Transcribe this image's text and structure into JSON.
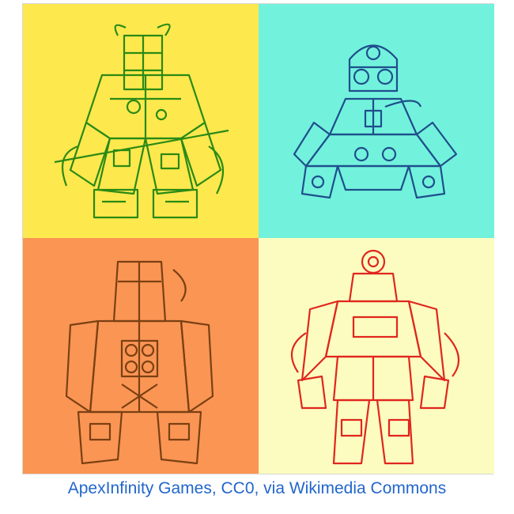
{
  "caption": {
    "text": "ApexInfinity Games, CC0, via Wikimedia Commons",
    "color": "#2266cc"
  },
  "panels": [
    {
      "background": "#fde84e",
      "line": "#2a8a14",
      "figure": "robot-figure-green"
    },
    {
      "background": "#72f2dc",
      "line": "#1f4e8c",
      "figure": "robot-figure-blue"
    },
    {
      "background": "#fa9554",
      "line": "#7a4012",
      "figure": "robot-figure-brown"
    },
    {
      "background": "#fcfcc0",
      "line": "#e0261e",
      "figure": "robot-figure-red"
    }
  ]
}
